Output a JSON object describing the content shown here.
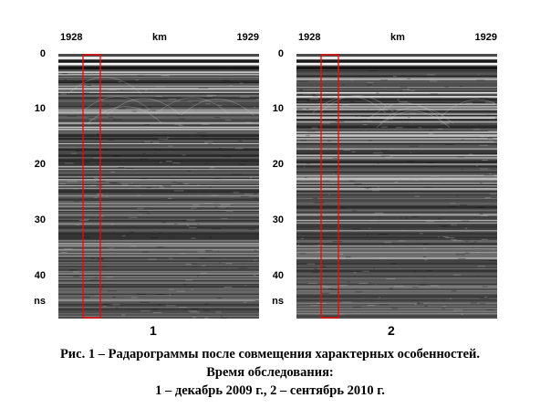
{
  "panels": [
    {
      "number": "1",
      "km_start": "1928",
      "km_unit": "km",
      "km_end": "1929",
      "y_ticks": [
        "0",
        "10",
        "20",
        "30",
        "40"
      ],
      "y_unit": "ns",
      "highlight_color": "#ff0000"
    },
    {
      "number": "2",
      "km_start": "1928",
      "km_unit": "km",
      "km_end": "1929",
      "y_ticks": [
        "0",
        "10",
        "20",
        "30",
        "40"
      ],
      "y_unit": "ns",
      "highlight_color": "#ff0000"
    }
  ],
  "caption": {
    "line1": "Рис. 1 – Радарограммы после совмещения характерных особенностей.",
    "line2": "Время обследования:",
    "line3": "1 – декабрь 2009 г., 2 – сентябрь 2010 г."
  }
}
